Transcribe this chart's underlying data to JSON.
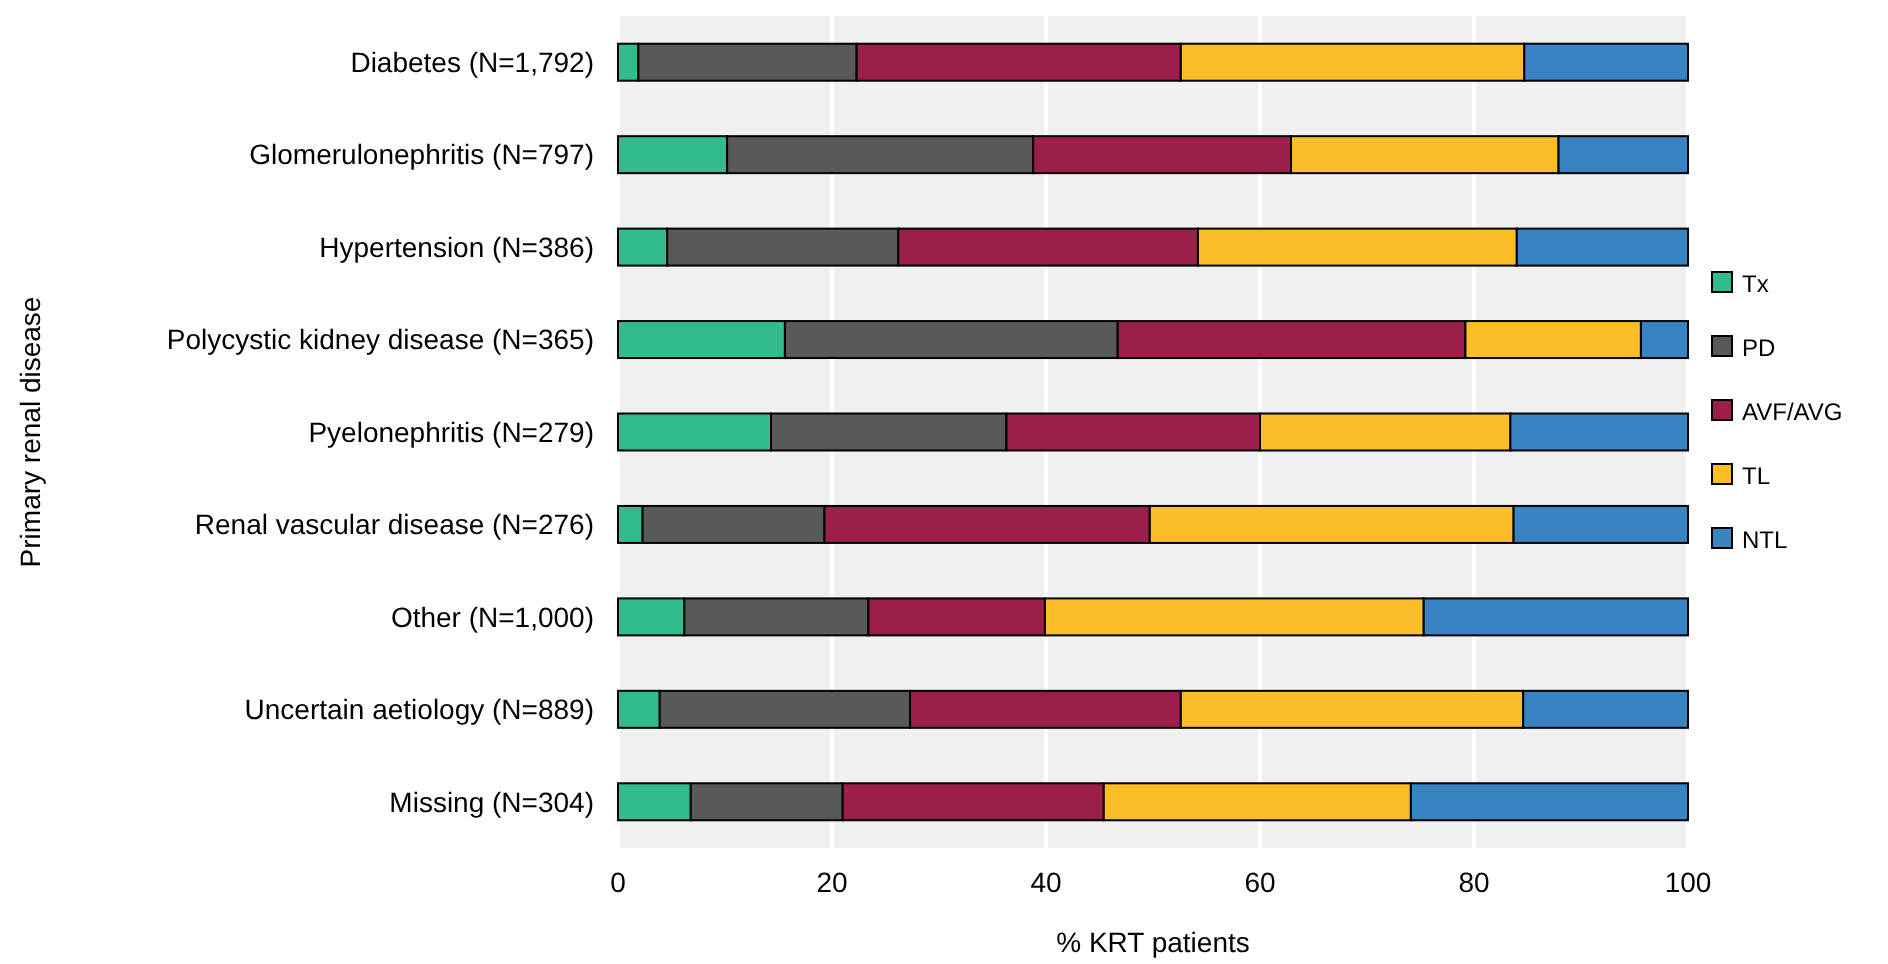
{
  "chart_data": {
    "type": "bar",
    "orientation": "horizontal",
    "stacked": true,
    "xlabel": "% KRT patients",
    "ylabel": "Primary renal disease",
    "categories": [
      "Diabetes (N=1,792)",
      "Glomerulonephritis (N=797)",
      "Hypertension (N=386)",
      "Polycystic kidney disease (N=365)",
      "Pyelonephritis (N=279)",
      "Renal vascular disease (N=276)",
      "Other (N=1,000)",
      "Uncertain aetiology (N=889)",
      "Missing (N=304)"
    ],
    "series": [
      {
        "name": "Tx",
        "color": "#33bb8f",
        "values": [
          1.9,
          10.2,
          4.6,
          15.6,
          14.3,
          2.3,
          6.2,
          3.9,
          6.8
        ]
      },
      {
        "name": "PD",
        "color": "#58595b",
        "values": [
          20.4,
          28.6,
          21.6,
          31.1,
          22.0,
          17.0,
          17.2,
          23.4,
          14.2
        ]
      },
      {
        "name": "AVF/AVG",
        "color": "#9b1f4a",
        "values": [
          30.3,
          24.1,
          28.0,
          32.5,
          23.7,
          30.4,
          16.5,
          25.3,
          24.4
        ]
      },
      {
        "name": "TL",
        "color": "#fbbd28",
        "values": [
          32.1,
          25.0,
          29.8,
          16.4,
          23.4,
          34.0,
          35.4,
          32.0,
          28.7
        ]
      },
      {
        "name": "NTL",
        "color": "#3a83c3",
        "values": [
          15.3,
          12.1,
          16.0,
          4.4,
          16.6,
          16.3,
          24.7,
          15.4,
          25.9
        ]
      }
    ],
    "xlim": [
      0,
      100
    ],
    "xticks": [
      0,
      20,
      40,
      60,
      80,
      100
    ],
    "grid": "x",
    "legend": "right"
  }
}
